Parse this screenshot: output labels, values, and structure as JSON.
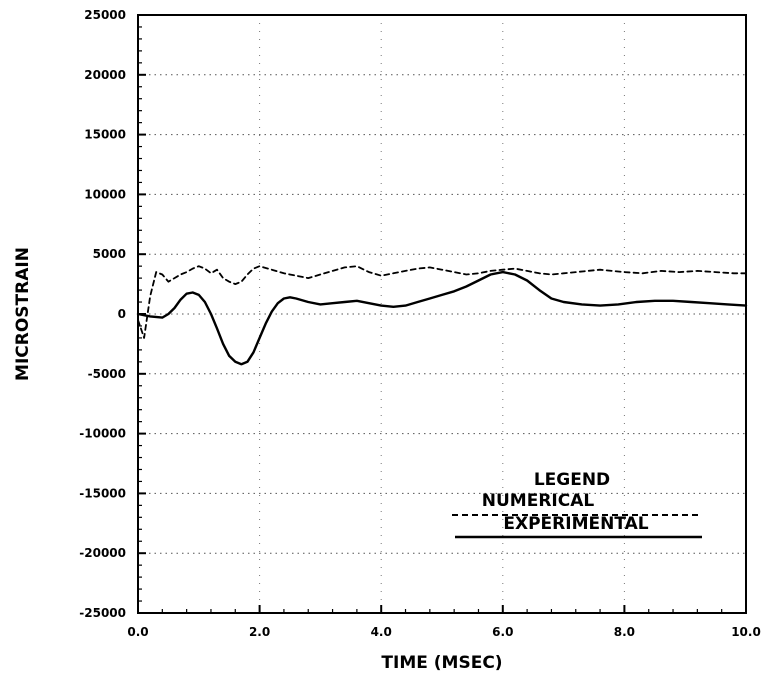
{
  "chart_data": {
    "type": "line",
    "title": "",
    "xlabel": "TIME (MSEC)",
    "ylabel": "MICROSTRAIN",
    "xlim": [
      0,
      10
    ],
    "ylim": [
      -25000,
      25000
    ],
    "x_ticks": [
      0,
      2,
      4,
      6,
      8,
      10
    ],
    "x_tick_labels": [
      "0.0",
      "2.0",
      "4.0",
      "6.0",
      "8.0",
      "10.0"
    ],
    "y_ticks": [
      25000,
      20000,
      15000,
      10000,
      5000,
      0,
      -5000,
      -10000,
      -15000,
      -20000,
      -25000
    ],
    "y_tick_labels": [
      "25000",
      "20000",
      "15000",
      "10000",
      "5000",
      "0",
      "-5000",
      "-10000",
      "-15000",
      "-20000",
      "-25000"
    ],
    "grid": true,
    "legend": {
      "title": "LEGEND",
      "placement": "bottom-right",
      "entries": [
        {
          "label": "NUMERICAL",
          "style": "dashed"
        },
        {
          "label": "EXPERIMENTAL",
          "style": "solid"
        }
      ]
    },
    "series": [
      {
        "name": "NUMERICAL",
        "style": "dashed",
        "color": "#000000",
        "x": [
          0.0,
          0.1,
          0.2,
          0.3,
          0.4,
          0.5,
          0.6,
          0.7,
          0.8,
          0.9,
          1.0,
          1.1,
          1.2,
          1.3,
          1.4,
          1.5,
          1.6,
          1.7,
          1.8,
          1.9,
          2.0,
          2.2,
          2.4,
          2.6,
          2.8,
          3.0,
          3.2,
          3.4,
          3.6,
          3.8,
          4.0,
          4.2,
          4.4,
          4.6,
          4.8,
          5.0,
          5.2,
          5.4,
          5.6,
          5.8,
          6.0,
          6.2,
          6.4,
          6.6,
          6.8,
          7.0,
          7.2,
          7.4,
          7.6,
          7.8,
          8.0,
          8.3,
          8.6,
          8.9,
          9.2,
          9.5,
          9.8,
          10.0
        ],
        "y": [
          -500,
          -2000,
          1500,
          3500,
          3300,
          2700,
          3000,
          3300,
          3500,
          3800,
          4000,
          3800,
          3400,
          3700,
          3000,
          2700,
          2500,
          2700,
          3300,
          3800,
          4000,
          3700,
          3400,
          3200,
          3000,
          3300,
          3600,
          3900,
          4000,
          3500,
          3200,
          3400,
          3600,
          3800,
          3900,
          3700,
          3500,
          3300,
          3400,
          3600,
          3700,
          3800,
          3600,
          3400,
          3300,
          3400,
          3500,
          3600,
          3700,
          3600,
          3500,
          3400,
          3600,
          3500,
          3600,
          3500,
          3400,
          3400
        ]
      },
      {
        "name": "EXPERIMENTAL",
        "style": "solid",
        "color": "#000000",
        "x": [
          0.0,
          0.2,
          0.4,
          0.5,
          0.6,
          0.7,
          0.8,
          0.9,
          1.0,
          1.1,
          1.2,
          1.3,
          1.4,
          1.5,
          1.6,
          1.7,
          1.8,
          1.9,
          2.0,
          2.1,
          2.2,
          2.3,
          2.4,
          2.5,
          2.6,
          2.8,
          3.0,
          3.2,
          3.4,
          3.6,
          3.8,
          4.0,
          4.2,
          4.4,
          4.6,
          4.8,
          5.0,
          5.2,
          5.4,
          5.6,
          5.8,
          6.0,
          6.2,
          6.4,
          6.6,
          6.8,
          7.0,
          7.3,
          7.6,
          7.9,
          8.2,
          8.5,
          8.8,
          9.1,
          9.4,
          9.7,
          10.0
        ],
        "y": [
          0,
          -200,
          -300,
          0,
          500,
          1200,
          1700,
          1800,
          1600,
          1000,
          0,
          -1200,
          -2500,
          -3500,
          -4000,
          -4200,
          -4000,
          -3200,
          -2000,
          -800,
          200,
          900,
          1300,
          1400,
          1300,
          1000,
          800,
          900,
          1000,
          1100,
          900,
          700,
          600,
          700,
          1000,
          1300,
          1600,
          1900,
          2300,
          2800,
          3300,
          3500,
          3300,
          2800,
          2000,
          1300,
          1000,
          800,
          700,
          800,
          1000,
          1100,
          1100,
          1000,
          900,
          800,
          700
        ]
      }
    ]
  }
}
